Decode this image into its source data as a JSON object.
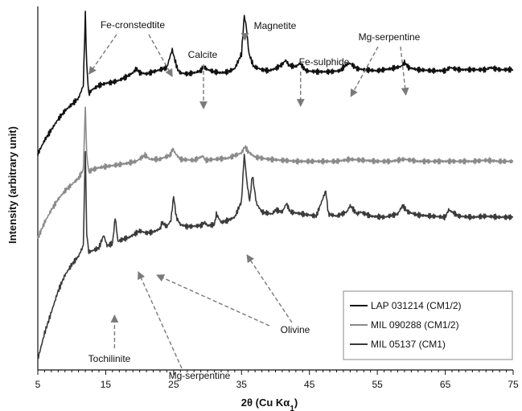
{
  "chart_data": {
    "type": "line",
    "xlabel": "2θ (Cu Kα",
    "xlabel_sub": "1",
    "xlabel_suffix": ")",
    "ylabel": "Intensity (arbitrary unit)",
    "xlim": [
      5,
      75
    ],
    "x_ticks": [
      "5",
      "15",
      "25",
      "35",
      "45",
      "55",
      "65",
      "75"
    ],
    "legend_position": "bottom-right",
    "grid": false,
    "colors": {
      "LAP": "#111111",
      "MIL090288": "#8a8a8a",
      "MIL05137": "#3a3a3a",
      "arrow": "#7a7a7a"
    },
    "series": [
      {
        "name": "LAP 031214 (CM1/2)",
        "color": "#111111",
        "x": [
          5,
          6,
          7,
          8,
          9,
          10,
          11,
          11.7,
          12.0,
          12.2,
          12.5,
          13,
          14,
          15,
          16,
          17,
          18,
          19,
          19.5,
          20,
          21,
          22,
          23,
          24,
          24.5,
          24.8,
          25.1,
          25.6,
          26,
          27,
          28,
          29,
          29.4,
          30,
          31,
          32,
          33,
          34,
          35,
          35.4,
          35.7,
          36.1,
          36.8,
          38,
          39,
          40,
          41,
          41.5,
          42,
          43,
          43.6,
          44.5,
          46,
          48,
          49.5,
          50.5,
          51,
          52,
          53,
          55,
          57,
          58.5,
          59,
          59.6,
          61,
          63,
          65,
          65.7,
          67,
          69,
          71,
          71.6,
          73,
          75
        ],
        "y": [
          205,
          218,
          228,
          238,
          246,
          252,
          258,
          270,
          338,
          290,
          262,
          266,
          270,
          272,
          273,
          275,
          278,
          282,
          286,
          282,
          281,
          283,
          285,
          287,
          298,
          304,
          296,
          285,
          282,
          281,
          282,
          284,
          288,
          285,
          283,
          282,
          283,
          286,
          300,
          336,
          326,
          300,
          288,
          285,
          284,
          286,
          290,
          294,
          289,
          288,
          291,
          284,
          283,
          283,
          284,
          290,
          291,
          286,
          285,
          284,
          286,
          288,
          292,
          287,
          285,
          284,
          284,
          287,
          285,
          285,
          285,
          287,
          285,
          285
        ]
      },
      {
        "name": "MIL 090288 (CM1/2)",
        "color": "#8a8a8a",
        "x": [
          5,
          6,
          7,
          8,
          9,
          10,
          11,
          11.7,
          12.0,
          12.2,
          12.5,
          13,
          14,
          16,
          18,
          19.5,
          20.8,
          21.5,
          23,
          24.5,
          24.9,
          25.3,
          26,
          28,
          29.3,
          29.7,
          31,
          33,
          35,
          35.5,
          36,
          37,
          39,
          41,
          43,
          45,
          47,
          49,
          51,
          53,
          55,
          57,
          59,
          61,
          63,
          65,
          67,
          69,
          71,
          73,
          75
        ],
        "y": [
          125,
          140,
          152,
          162,
          170,
          176,
          182,
          190,
          250,
          205,
          188,
          190,
          192,
          194,
          196,
          198,
          204,
          200,
          200,
          204,
          210,
          205,
          200,
          199,
          203,
          199,
          200,
          201,
          206,
          212,
          207,
          202,
          200,
          199,
          198,
          198,
          198,
          198,
          200,
          199,
          198,
          198,
          200,
          198,
          198,
          198,
          198,
          198,
          199,
          198,
          198
        ]
      },
      {
        "name": "MIL 05137 (CM1)",
        "color": "#3a3a3a",
        "x": [
          5,
          6,
          7,
          8,
          9,
          10,
          11,
          11.7,
          12.0,
          12.2,
          12.5,
          13,
          14,
          14.7,
          15.2,
          16,
          16.4,
          16.8,
          17.5,
          18.5,
          19.5,
          20,
          21,
          22,
          23,
          23.3,
          24,
          24.6,
          25,
          25.4,
          26,
          27,
          29,
          29.6,
          30,
          31,
          31.3,
          32,
          33,
          34,
          35,
          35.4,
          35.8,
          36.2,
          36.6,
          37.2,
          38,
          39.5,
          40,
          41,
          41.6,
          42.2,
          44,
          46,
          47.4,
          47.8,
          49,
          50.5,
          51,
          52,
          52.5,
          54,
          56,
          58,
          58.7,
          59.5,
          61,
          63,
          65,
          65.5,
          67,
          69,
          71,
          73,
          75
        ],
        "y": [
          10,
          35,
          55,
          75,
          90,
          100,
          108,
          118,
          210,
          130,
          112,
          113,
          116,
          128,
          118,
          120,
          145,
          122,
          124,
          126,
          130,
          132,
          130,
          131,
          134,
          140,
          136,
          142,
          165,
          145,
          138,
          136,
          137,
          140,
          137,
          138,
          148,
          140,
          142,
          145,
          160,
          205,
          178,
          160,
          185,
          158,
          150,
          148,
          152,
          150,
          158,
          150,
          148,
          146,
          170,
          148,
          146,
          150,
          156,
          148,
          150,
          146,
          145,
          148,
          156,
          150,
          147,
          146,
          145,
          152,
          146,
          145,
          146,
          145,
          145
        ]
      }
    ],
    "annotations": [
      {
        "text": "Fe-cronstedtite",
        "targets": [
          12.2,
          24.8
        ]
      },
      {
        "text": "Calcite",
        "targets": [
          29.4
        ]
      },
      {
        "text": "Magnetite",
        "targets": [
          35.5
        ]
      },
      {
        "text": "Fe-sulphide",
        "targets": [
          43.7
        ]
      },
      {
        "text": "Mg-serpentine",
        "targets": [
          50.5,
          59.2
        ]
      },
      {
        "text": "Olivine",
        "targets": [
          21.5,
          35.8
        ]
      },
      {
        "text": "Tochilinite",
        "targets": [
          16.3
        ]
      },
      {
        "text": "Mg-serpentine",
        "targets": [
          19.5
        ]
      }
    ]
  }
}
